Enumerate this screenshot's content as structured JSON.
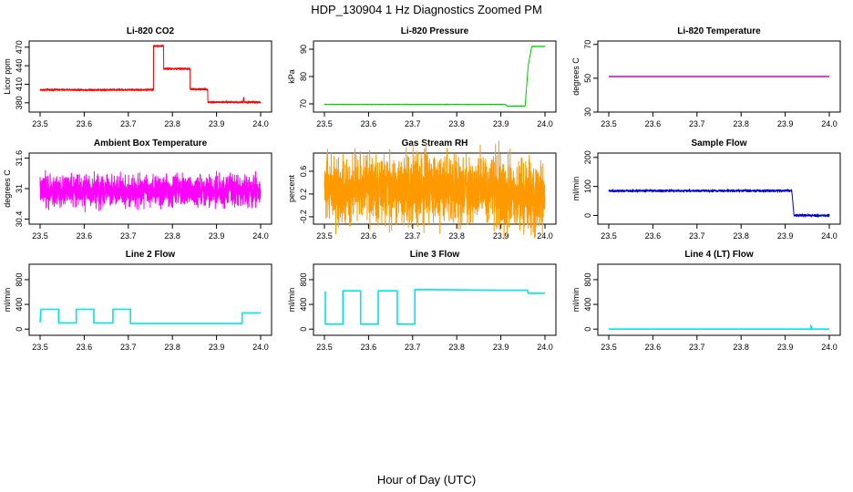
{
  "figure": {
    "title": "HDP_130904  1 Hz Diagnostics Zoomed PM",
    "xlabel": "Hour of Day (UTC)"
  },
  "chart_data": [
    {
      "type": "line",
      "title": "Li-820 CO2",
      "ylabel": "Licor ppm",
      "color": "#ff0000",
      "xlim": [
        23.5,
        24.0
      ],
      "xticks": [
        23.5,
        23.6,
        23.7,
        23.8,
        23.9,
        24.0
      ],
      "ylim": [
        365,
        480
      ],
      "yticks": [
        380,
        410,
        440,
        470
      ],
      "noise": 1.5,
      "x": [
        23.5,
        23.757,
        23.757,
        23.78,
        23.78,
        23.84,
        23.84,
        23.88,
        23.88,
        23.96,
        23.962,
        23.963,
        24.0
      ],
      "y": [
        401,
        401,
        472,
        472,
        435,
        435,
        402,
        402,
        381,
        381,
        390,
        381,
        381
      ]
    },
    {
      "type": "line",
      "title": "Li-820 Pressure",
      "ylabel": "kPa",
      "color": "#00cc00",
      "xlim": [
        23.5,
        24.0
      ],
      "xticks": [
        23.5,
        23.6,
        23.7,
        23.8,
        23.9,
        24.0
      ],
      "ylim": [
        67,
        93
      ],
      "yticks": [
        70,
        80,
        90
      ],
      "noise": 0.1,
      "x": [
        23.5,
        23.91,
        23.915,
        23.955,
        23.962,
        23.97,
        24.0
      ],
      "y": [
        69.8,
        69.8,
        69.2,
        69.2,
        84,
        91,
        91
      ]
    },
    {
      "type": "line",
      "title": "Li-820 Temperature",
      "ylabel": "degrees C",
      "color": "#cc00cc",
      "xlim": [
        23.5,
        24.0
      ],
      "xticks": [
        23.5,
        23.6,
        23.7,
        23.8,
        23.9,
        24.0
      ],
      "ylim": [
        30,
        72
      ],
      "yticks": [
        30,
        50,
        70
      ],
      "noise": 0,
      "x": [
        23.5,
        24.0
      ],
      "y": [
        51.0,
        51.0
      ]
    },
    {
      "type": "line",
      "title": "Ambient Box Temperature",
      "ylabel": "degrees C",
      "color": "#ff00ff",
      "xlim": [
        23.5,
        24.0
      ],
      "xticks": [
        23.5,
        23.6,
        23.7,
        23.8,
        23.9,
        24.0
      ],
      "ylim": [
        30.3,
        31.7
      ],
      "yticks": [
        30.4,
        31.0,
        31.6
      ],
      "noise": 0.3,
      "x": [
        23.5,
        24.0
      ],
      "y": [
        30.95,
        30.95
      ]
    },
    {
      "type": "line",
      "title": "Gas Stream RH",
      "ylabel": "percent",
      "color": "#ff9900",
      "xlim": [
        23.5,
        24.0
      ],
      "xticks": [
        23.5,
        23.6,
        23.7,
        23.8,
        23.9,
        24.0
      ],
      "ylim": [
        -0.33,
        0.92
      ],
      "yticks": [
        -0.2,
        0.2,
        0.6
      ],
      "noise": 0.6,
      "x": [
        23.5,
        23.9,
        23.9,
        24.0
      ],
      "y": [
        0.3,
        0.3,
        0.15,
        0.15
      ]
    },
    {
      "type": "line",
      "title": "Sample Flow",
      "ylabel": "ml/min",
      "color": "#0000cc",
      "xlim": [
        23.5,
        24.0
      ],
      "xticks": [
        23.5,
        23.6,
        23.7,
        23.8,
        23.9,
        24.0
      ],
      "ylim": [
        -30,
        215
      ],
      "yticks": [
        0,
        100,
        200
      ],
      "noise": 4,
      "x": [
        23.5,
        23.915,
        23.92,
        24.0
      ],
      "y": [
        85,
        85,
        0,
        0
      ]
    },
    {
      "type": "line",
      "title": "Line 2 Flow",
      "ylabel": "ml/min",
      "color": "#00e5e5",
      "xlim": [
        23.5,
        24.0
      ],
      "xticks": [
        23.5,
        23.6,
        23.7,
        23.8,
        23.9,
        24.0
      ],
      "ylim": [
        -100,
        1050
      ],
      "yticks": [
        0,
        400,
        800
      ],
      "noise": 0,
      "x": [
        23.5,
        23.502,
        23.542,
        23.542,
        23.582,
        23.582,
        23.622,
        23.622,
        23.665,
        23.665,
        23.705,
        23.705,
        23.958,
        23.958,
        24.0
      ],
      "y": [
        110,
        320,
        320,
        100,
        100,
        320,
        320,
        100,
        100,
        320,
        320,
        90,
        90,
        260,
        260
      ]
    },
    {
      "type": "line",
      "title": "Line 3 Flow",
      "ylabel": "ml/min",
      "color": "#00e5e5",
      "xlim": [
        23.5,
        24.0
      ],
      "xticks": [
        23.5,
        23.6,
        23.7,
        23.8,
        23.9,
        24.0
      ],
      "ylim": [
        -100,
        1050
      ],
      "yticks": [
        0,
        400,
        800
      ],
      "noise": 0,
      "x": [
        23.5,
        23.502,
        23.502,
        23.542,
        23.542,
        23.582,
        23.582,
        23.622,
        23.622,
        23.665,
        23.665,
        23.705,
        23.705,
        23.9,
        23.96,
        23.962,
        24.0
      ],
      "y": [
        600,
        600,
        80,
        80,
        620,
        620,
        80,
        80,
        620,
        620,
        80,
        80,
        640,
        630,
        630,
        580,
        580
      ]
    },
    {
      "type": "line",
      "title": "Line 4 (LT) Flow",
      "ylabel": "ml/min",
      "color": "#00e5e5",
      "xlim": [
        23.5,
        24.0
      ],
      "xticks": [
        23.5,
        23.6,
        23.7,
        23.8,
        23.9,
        24.0
      ],
      "ylim": [
        -100,
        1050
      ],
      "yticks": [
        0,
        400,
        800
      ],
      "noise": 0,
      "x": [
        23.5,
        23.958,
        23.958,
        23.9585,
        23.959,
        23.96,
        24.0
      ],
      "y": [
        0,
        0,
        60,
        0,
        40,
        0,
        0
      ]
    }
  ]
}
